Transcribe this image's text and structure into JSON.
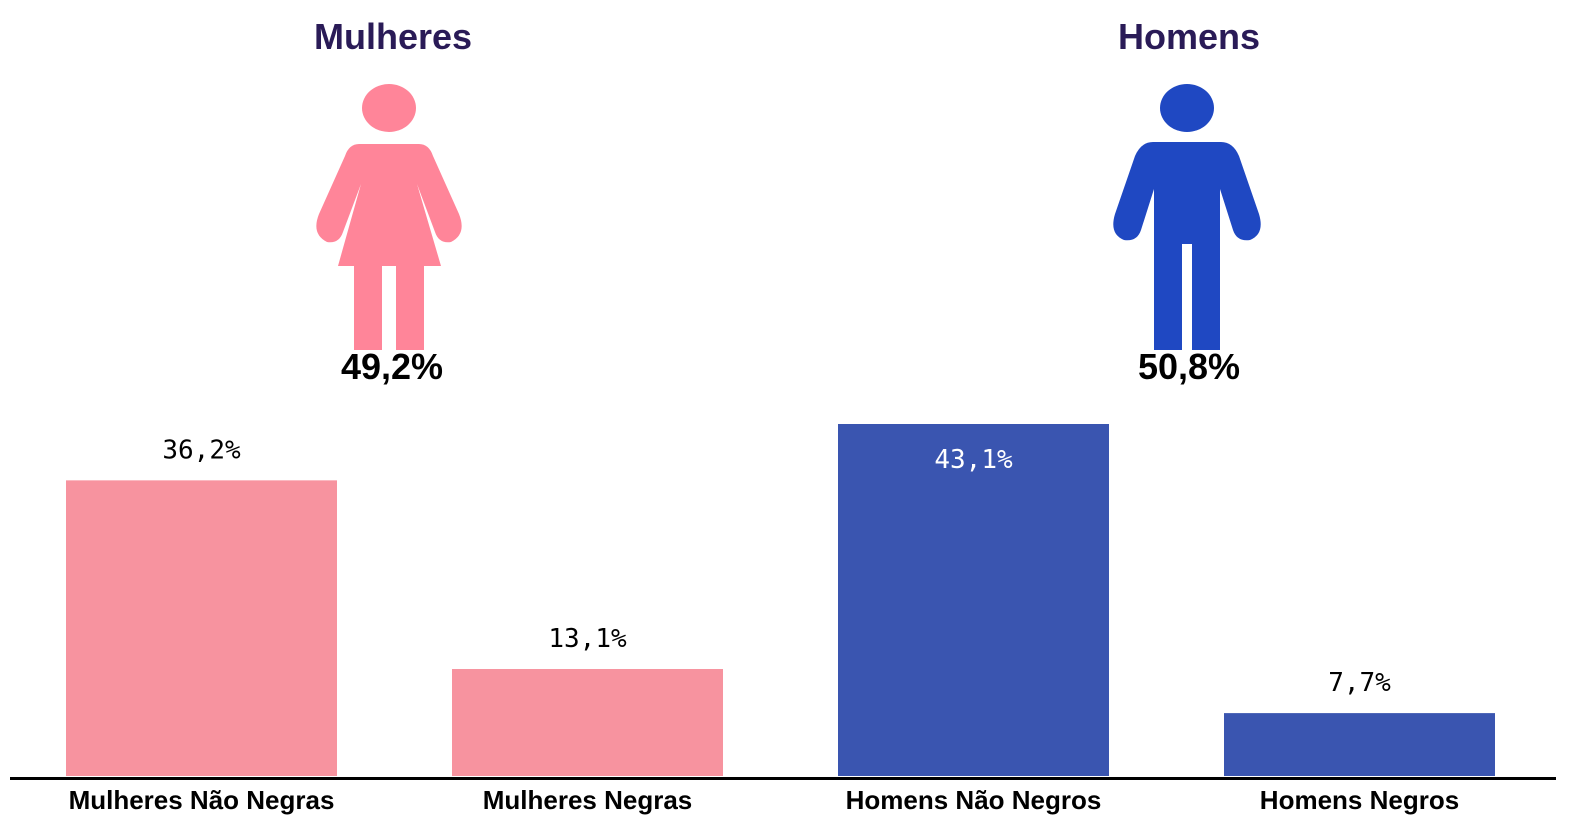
{
  "groups": {
    "women": {
      "title": "Mulheres",
      "percent": "49,2%",
      "color": "#ff8599",
      "icon": "woman-icon"
    },
    "men": {
      "title": "Homens",
      "percent": "50,8%",
      "color": "#1f48c2",
      "icon": "man-icon"
    }
  },
  "chart_data": {
    "type": "bar",
    "categories": [
      "Mulheres Não Negras",
      "Mulheres Negras",
      "Homens Não Negros",
      "Homens Negros"
    ],
    "values": [
      36.2,
      13.1,
      43.1,
      7.7
    ],
    "value_labels": [
      "36,2%",
      "13,1%",
      "43,1%",
      "7,7%"
    ],
    "bar_colors": [
      "#f7939f",
      "#f7939f",
      "#3a55b0",
      "#3a55b0"
    ],
    "label_colors": [
      "#000000",
      "#000000",
      "#ffffff",
      "#000000"
    ],
    "label_inside": [
      false,
      false,
      true,
      false
    ],
    "title": "",
    "xlabel": "",
    "ylabel": "",
    "ylim": [
      0,
      43.1
    ],
    "grid": false,
    "legend": "none"
  }
}
